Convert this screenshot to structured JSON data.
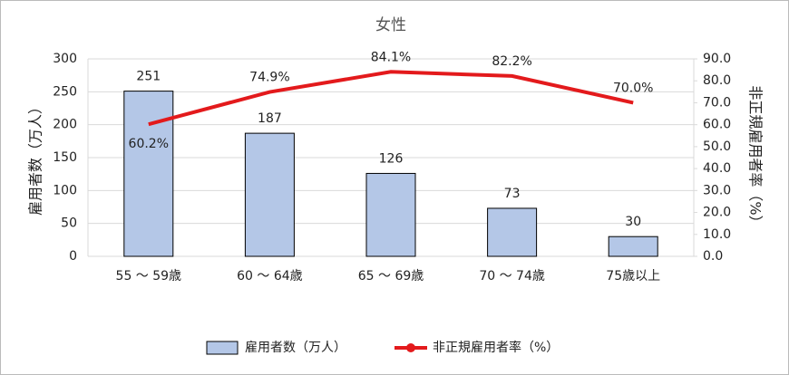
{
  "chart_data": {
    "type": "bar",
    "title": "女性",
    "y_label": "雇用者数（万人）",
    "y2_label": "非正規雇用者率（%）",
    "categories": [
      "55 〜 59歳",
      "60 〜 64歳",
      "65 〜 69歳",
      "70 〜 74歳",
      "75歳以上"
    ],
    "series": [
      {
        "name": "雇用者数（万人）",
        "type": "bar",
        "color": "#b4c7e7",
        "values": [
          251,
          187,
          126,
          73,
          30
        ]
      },
      {
        "name": "非正規雇用者率（%）",
        "type": "line",
        "axis": "y2",
        "color": "#e31a1c",
        "values": [
          60.2,
          74.9,
          84.1,
          82.2,
          70.0
        ],
        "value_labels": [
          "60.2%",
          "74.9%",
          "84.1%",
          "82.2%",
          "70.0%"
        ]
      }
    ],
    "ylim": [
      0,
      300
    ],
    "yticks": [
      0,
      50,
      100,
      150,
      200,
      250,
      300
    ],
    "y2lim": [
      0,
      90
    ],
    "y2ticks": [
      {
        "value": 0,
        "label": "0.0"
      },
      {
        "value": 10,
        "label": "10.0"
      },
      {
        "value": 20,
        "label": "20.0"
      },
      {
        "value": 30,
        "label": "30.0"
      },
      {
        "value": 40,
        "label": "40.0"
      },
      {
        "value": 50,
        "label": "50.0"
      },
      {
        "value": 60,
        "label": "60.0"
      },
      {
        "value": 70,
        "label": "70.0"
      },
      {
        "value": 80,
        "label": "80.0"
      },
      {
        "value": 90,
        "label": "90.0"
      }
    ],
    "grid": true,
    "legend": "bottom"
  }
}
